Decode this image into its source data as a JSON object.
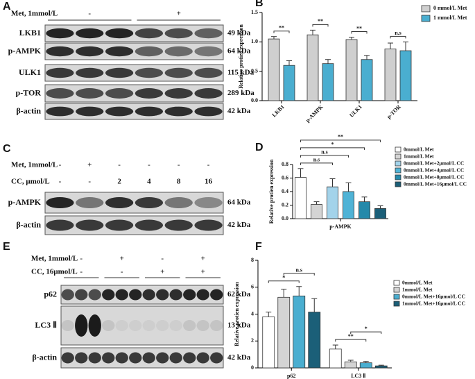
{
  "blots": [
    {
      "label": "A",
      "conditions": [
        {
          "name": "Met, 1mmol/L",
          "marks": [
            "-",
            "+"
          ]
        }
      ],
      "rows": [
        {
          "name": "LKB1",
          "size": "49 kDa"
        },
        {
          "name": "p-AMPK",
          "size": "64 kDa"
        },
        {
          "name": "ULK1",
          "size": "115 kDa"
        },
        {
          "name": "p-TOR",
          "size": "289 kDa"
        },
        {
          "name": "β-actin",
          "size": "42 kDa"
        }
      ]
    },
    {
      "label": "C",
      "conditions": [
        {
          "name": "Met, 1mmol/L",
          "marks": [
            "-",
            "+",
            "-",
            "-",
            "-",
            "-"
          ]
        },
        {
          "name": "CC, μmol/L",
          "marks": [
            "-",
            "-",
            "2",
            "4",
            "8",
            "16"
          ]
        }
      ],
      "rows": [
        {
          "name": "p-AMPK",
          "size": "64 kDa"
        },
        {
          "name": "β-actin",
          "size": "42 kDa"
        }
      ]
    },
    {
      "label": "E",
      "conditions": [
        {
          "name": "Met, 1mmol/L",
          "marks": [
            "-",
            "+",
            "-",
            "+"
          ]
        },
        {
          "name": "CC, 16μmol/L",
          "marks": [
            "-",
            "-",
            "+",
            "+"
          ]
        }
      ],
      "rows": [
        {
          "name": "p62",
          "size": "62 kDa"
        },
        {
          "name": "LC3 Ⅱ",
          "size": "13 kDa"
        },
        {
          "name": "β-actin",
          "size": "42 kDa"
        }
      ]
    }
  ],
  "chart_data": [
    {
      "type": "bar",
      "label": "B",
      "ylabel": "Relative protien expression",
      "categories": [
        "LKB1",
        "p-AMPK",
        "ULK1",
        "p-TOR"
      ],
      "series": [
        {
          "name": "0 mmol/L Met",
          "color": "#cfcfcf",
          "values": [
            1.05,
            1.12,
            1.04,
            0.88
          ],
          "errors": [
            0.04,
            0.08,
            0.04,
            0.1
          ]
        },
        {
          "name": "1 mmol/L Met",
          "color": "#4aaed0",
          "values": [
            0.6,
            0.63,
            0.7,
            0.85
          ],
          "errors": [
            0.08,
            0.07,
            0.07,
            0.15
          ]
        }
      ],
      "ylim": [
        0,
        1.5
      ],
      "yticks": [
        {
          "value": 0,
          "label": "0.0"
        },
        {
          "value": 0.5,
          "label": "0.5"
        },
        {
          "value": 1,
          "label": "1.0"
        },
        {
          "value": 1.5,
          "label": "1.5"
        }
      ],
      "annotations": [
        {
          "text": "**",
          "category": 0,
          "bars": [
            0,
            1
          ]
        },
        {
          "text": "**",
          "category": 1,
          "bars": [
            0,
            1
          ]
        },
        {
          "text": "**",
          "category": 2,
          "bars": [
            0,
            1
          ]
        },
        {
          "text": "n.s",
          "category": 3,
          "bars": [
            0,
            1
          ]
        }
      ]
    },
    {
      "type": "bar",
      "label": "D",
      "ylabel": "Relative protien expression",
      "categories": [
        "p-AMPK"
      ],
      "series": [
        {
          "name": "0mmol/L Met",
          "color": "#ffffff",
          "values": [
            0.61
          ],
          "errors": [
            0.13
          ]
        },
        {
          "name": "1mmol/L Met",
          "color": "#d4d4d4",
          "values": [
            0.21
          ],
          "errors": [
            0.04
          ]
        },
        {
          "name": "0mmol/L Met+2μmol/L CC",
          "color": "#a3d3ea",
          "values": [
            0.47
          ],
          "errors": [
            0.12
          ]
        },
        {
          "name": "0mmol/L Met+4μmol/L CC",
          "color": "#4fb3d6",
          "values": [
            0.4
          ],
          "errors": [
            0.13
          ]
        },
        {
          "name": "0mmol/L Met+8μmol/L CC",
          "color": "#2489aa",
          "values": [
            0.25
          ],
          "errors": [
            0.07
          ]
        },
        {
          "name": "0mmol/L Met+16μmol/L CC",
          "color": "#1b5f78",
          "values": [
            0.15
          ],
          "errors": [
            0.04
          ]
        }
      ],
      "ylim": [
        0,
        0.8
      ],
      "yticks": [
        {
          "value": 0,
          "label": "0.0"
        },
        {
          "value": 0.2,
          "label": "0.2"
        },
        {
          "value": 0.4,
          "label": "0.4"
        },
        {
          "value": 0.6,
          "label": "0.6"
        },
        {
          "value": 0.8,
          "label": "0.8"
        }
      ],
      "annotations": [
        {
          "text": "n.s",
          "category": 0,
          "bars": [
            0,
            2
          ]
        },
        {
          "text": "n.s",
          "category": 0,
          "bars": [
            0,
            3
          ]
        },
        {
          "text": "*",
          "category": 0,
          "bars": [
            0,
            4
          ]
        },
        {
          "text": "**",
          "category": 0,
          "bars": [
            0,
            5
          ]
        }
      ]
    },
    {
      "type": "bar",
      "label": "F",
      "ylabel": "Relative protien expression",
      "categories": [
        "p62",
        "LC3 Ⅱ"
      ],
      "series": [
        {
          "name": "0mmol/L Met",
          "color": "#ffffff",
          "values": [
            3.8,
            1.4
          ],
          "errors": [
            0.35,
            0.3
          ]
        },
        {
          "name": "1mmol/L Met",
          "color": "#d4d4d4",
          "values": [
            5.25,
            0.45
          ],
          "errors": [
            0.6,
            0.12
          ]
        },
        {
          "name": "0mmol/L Met+16μmol/L CC",
          "color": "#4aaed0",
          "values": [
            5.35,
            0.38
          ],
          "errors": [
            0.7,
            0.1
          ]
        },
        {
          "name": "1mmol/L Met+16μmol/L CC",
          "color": "#1b5f78",
          "values": [
            4.15,
            0.15
          ],
          "errors": [
            1.0,
            0.05
          ]
        }
      ],
      "ylim": [
        0,
        8
      ],
      "yticks": [
        0,
        2,
        4,
        6,
        8
      ],
      "annotations": [
        {
          "text": "*",
          "category": 0,
          "bars": [
            0,
            2
          ]
        },
        {
          "text": "n.s",
          "category": 0,
          "bars": [
            1,
            3
          ]
        },
        {
          "text": "**",
          "category": 1,
          "bars": [
            0,
            2
          ]
        },
        {
          "text": "*",
          "category": 1,
          "bars": [
            1,
            3
          ]
        }
      ]
    }
  ]
}
